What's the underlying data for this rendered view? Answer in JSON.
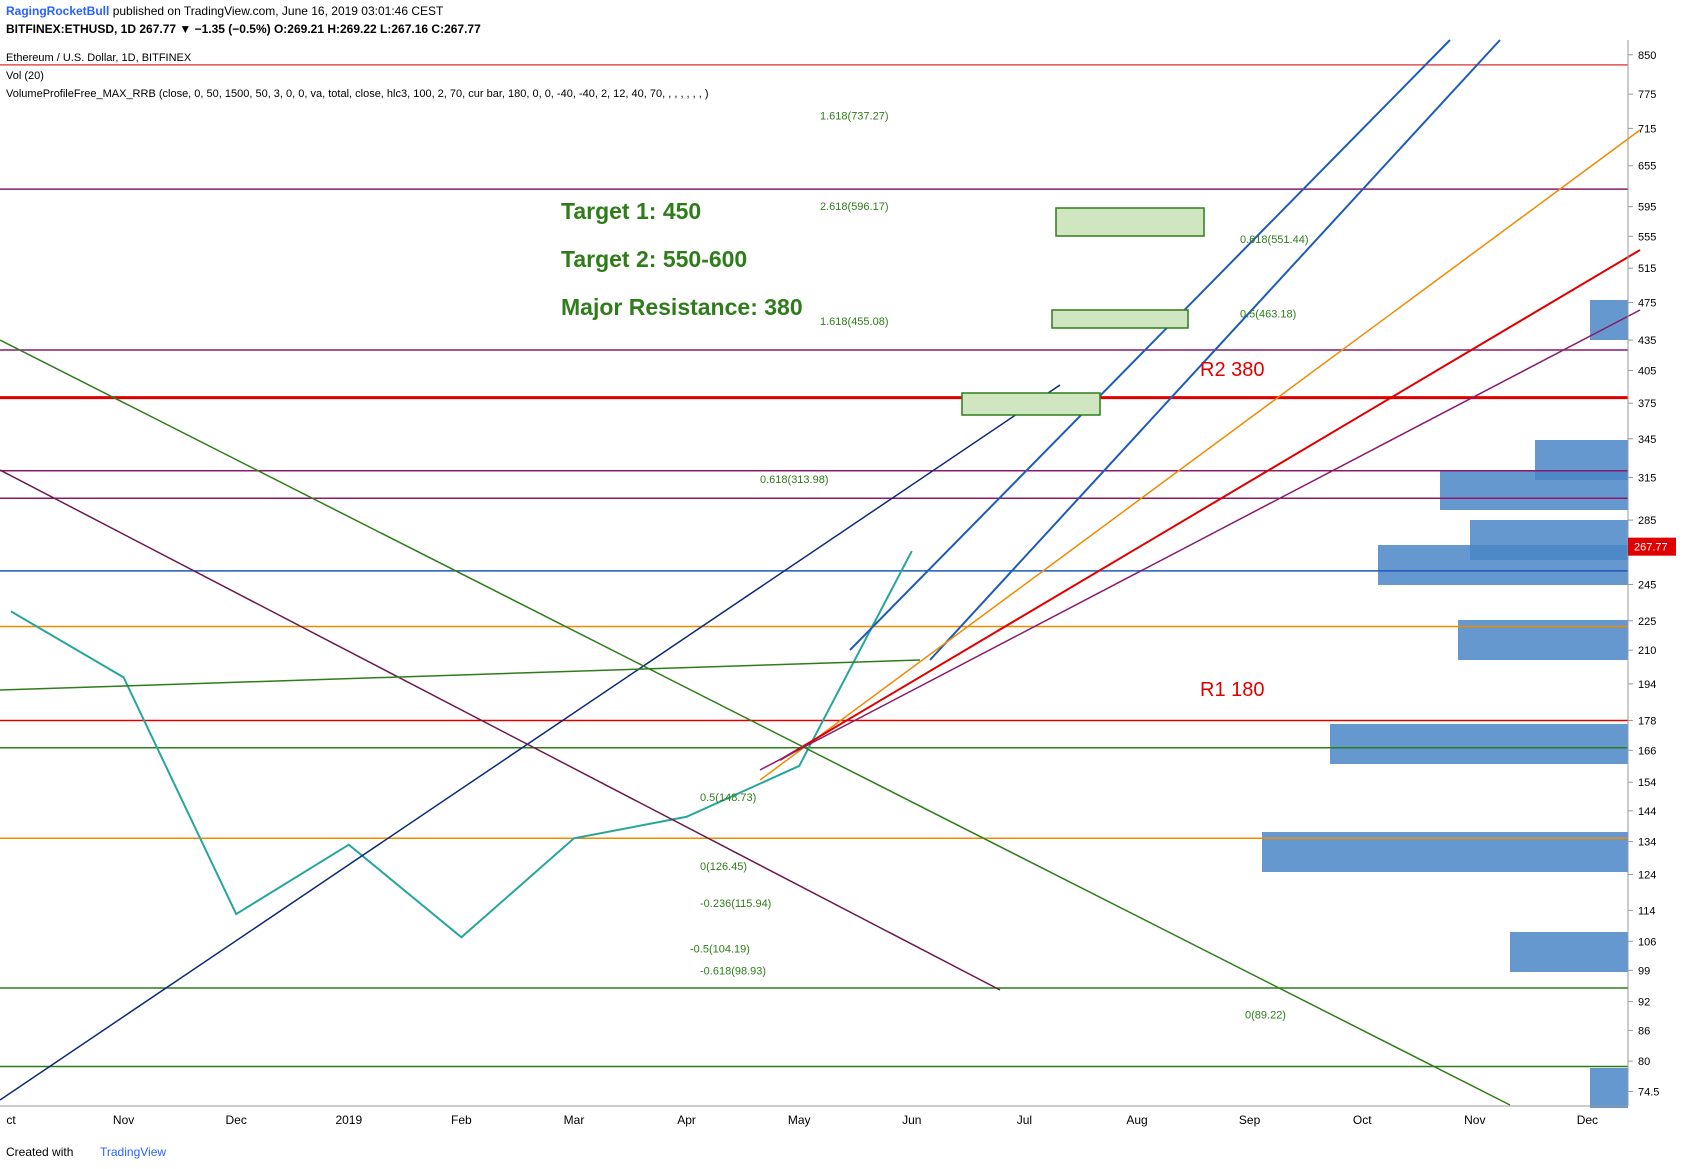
{
  "header": {
    "author": "RagingRocketBull",
    "published": "published on TradingView.com, June 16, 2019 03:01:46 CEST",
    "quote": "BITFINEX:ETHUSD, 1D 267.77 ▼ −1.35 (−0.5%) O:269.21 H:269.22 L:267.16 C:267.77"
  },
  "legend": [
    "Ethereum / U.S. Dollar, 1D, BITFINEX",
    "Vol (20)",
    "VolumeProfileFree_MAX_RRB (close, 0, 50, 1500, 50, 3, 0, 0, va, total, close, hlc3, 100, 2, 70, cur bar, 180, 0, 0, -40, -40, 2, 12, 40, 70, , , , , , , )"
  ],
  "annotations": {
    "target1": "Target 1: 450",
    "target2": "Target 2: 550-600",
    "resistance": "Major Resistance: 380",
    "r2": "R2 380",
    "r1": "R1 180"
  },
  "footer": {
    "created": "Created with",
    "brand": "TradingView"
  },
  "chart_data": {
    "type": "line",
    "log_scale": true,
    "categories": [
      "ct",
      "Nov",
      "Dec",
      "2019",
      "Feb",
      "Mar",
      "Apr",
      "May",
      "Jun",
      "Jul",
      "Aug",
      "Sep",
      "Oct",
      "Nov",
      "Dec"
    ],
    "series": [
      {
        "name": "ETHUSD",
        "color": "#26a69a",
        "values": [
          230,
          197,
          113,
          133,
          107,
          135,
          142,
          160,
          265,
          null,
          null,
          null,
          null,
          null,
          null
        ]
      }
    ],
    "last_price": 267.77,
    "ylim": [
      72,
      880
    ],
    "yticks": [
      74.5,
      80,
      86,
      92,
      99,
      106,
      114,
      124,
      134,
      144,
      154,
      166,
      178,
      194,
      210,
      225,
      245,
      285,
      315,
      345,
      375,
      405,
      435,
      475,
      515,
      555,
      595,
      655,
      715,
      775,
      850
    ],
    "levels": [
      {
        "value": 380,
        "color": "#e00000"
      },
      {
        "value": 178,
        "color": "#e00000"
      },
      {
        "value": 253,
        "color": "#1e5bb8"
      },
      {
        "value": 222,
        "color": "#f08a00"
      },
      {
        "value": 167,
        "color": "#2e7d1a"
      },
      {
        "value": 95,
        "color": "#2e7d1a"
      },
      {
        "value": 79,
        "color": "#2e7d1a"
      },
      {
        "value": 135,
        "color": "#f08a00"
      },
      {
        "value": 300,
        "color": "#8b1a6b"
      },
      {
        "value": 320,
        "color": "#8b1a6b"
      },
      {
        "value": 425,
        "color": "#8b1a6b"
      },
      {
        "value": 620,
        "color": "#8b1a6b"
      },
      {
        "value": 830,
        "color": "#e05050"
      }
    ],
    "fib_labels": [
      {
        "label": "1.618(455.08)",
        "value": 455.08
      },
      {
        "label": "0.618(313.98)",
        "value": 313.98
      },
      {
        "label": "2.618(596.17)",
        "value": 596.17
      },
      {
        "label": "1.618(737.27)",
        "value": 737.27
      },
      {
        "label": "0.5(463.18)",
        "value": 463.18
      },
      {
        "label": "0.618(551.44)",
        "value": 551.44
      },
      {
        "label": "0(89.22)",
        "value": 89.22
      },
      {
        "label": "-0.236(115.94)",
        "value": 115.94
      },
      {
        "label": "0(126.45)",
        "value": 126.45
      },
      {
        "label": "-0.5(104.19)",
        "value": 104.19
      },
      {
        "label": "-0.618(98.93)",
        "value": 98.93
      },
      {
        "label": "0.5(148.73)",
        "value": 148.73
      }
    ],
    "grid": false
  }
}
